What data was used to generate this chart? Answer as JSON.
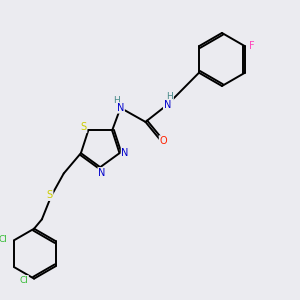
{
  "background_color": "#ebebf0",
  "bond_color": "#000000",
  "atom_colors": {
    "S": "#cccc00",
    "N": "#0000cc",
    "O": "#ff2200",
    "F": "#ff44bb",
    "Cl": "#33bb33",
    "H": "#448888",
    "C": "#000000"
  }
}
